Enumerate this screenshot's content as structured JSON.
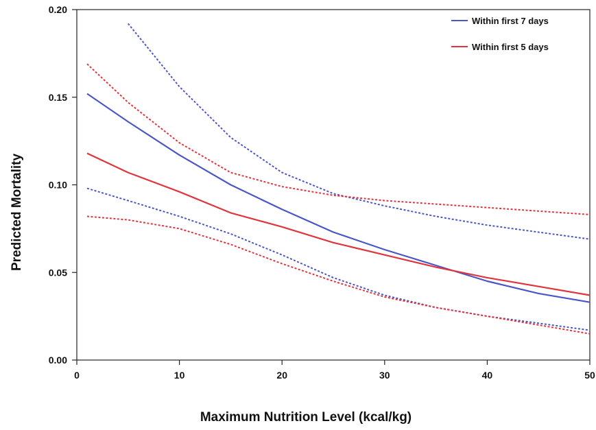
{
  "chart_data": {
    "type": "line",
    "title": "",
    "xlabel": "Maximum Nutrition Level (kcal/kg)",
    "ylabel": "Predicted Mortality",
    "xlim": [
      0,
      50
    ],
    "ylim": [
      0,
      0.2
    ],
    "x_ticks": [
      "0",
      "10",
      "20",
      "30",
      "40",
      "50"
    ],
    "y_ticks": [
      "0.00",
      "0.05",
      "0.10",
      "0.15",
      "0.20"
    ],
    "grid": false,
    "legend_position": "top-right",
    "colors": {
      "blue": "#4a55c8",
      "red": "#e0353c"
    },
    "series": [
      {
        "name": "Within first 7 days",
        "color": "#4a55c8",
        "style": "solid",
        "x": [
          1,
          5,
          10,
          15,
          20,
          25,
          30,
          35,
          40,
          45,
          50
        ],
        "y": [
          0.152,
          0.136,
          0.117,
          0.1,
          0.086,
          0.073,
          0.063,
          0.054,
          0.045,
          0.038,
          0.033
        ]
      },
      {
        "name": "Within first 5 days",
        "color": "#e0353c",
        "style": "solid",
        "x": [
          1,
          5,
          10,
          15,
          20,
          25,
          30,
          35,
          40,
          45,
          50
        ],
        "y": [
          0.118,
          0.107,
          0.096,
          0.084,
          0.076,
          0.067,
          0.06,
          0.053,
          0.047,
          0.042,
          0.037
        ]
      },
      {
        "color": "#4a55c8",
        "style": "dashed",
        "x": [
          5,
          10,
          15,
          20,
          25,
          30,
          35,
          40,
          45,
          50
        ],
        "y": [
          0.192,
          0.156,
          0.127,
          0.107,
          0.095,
          0.088,
          0.082,
          0.077,
          0.073,
          0.069
        ]
      },
      {
        "color": "#4a55c8",
        "style": "dashed",
        "x": [
          1,
          5,
          10,
          15,
          20,
          25,
          30,
          35,
          40,
          45,
          50
        ],
        "y": [
          0.098,
          0.091,
          0.082,
          0.072,
          0.06,
          0.047,
          0.037,
          0.03,
          0.025,
          0.021,
          0.017
        ]
      },
      {
        "color": "#e0353c",
        "style": "dashed",
        "x": [
          1,
          5,
          10,
          15,
          20,
          25,
          30,
          35,
          40,
          45,
          50
        ],
        "y": [
          0.169,
          0.147,
          0.124,
          0.107,
          0.099,
          0.094,
          0.091,
          0.089,
          0.087,
          0.085,
          0.083
        ]
      },
      {
        "color": "#e0353c",
        "style": "dashed",
        "x": [
          1,
          5,
          10,
          15,
          20,
          25,
          30,
          35,
          40,
          45,
          50
        ],
        "y": [
          0.082,
          0.08,
          0.075,
          0.066,
          0.055,
          0.045,
          0.036,
          0.03,
          0.025,
          0.02,
          0.015
        ]
      }
    ]
  }
}
